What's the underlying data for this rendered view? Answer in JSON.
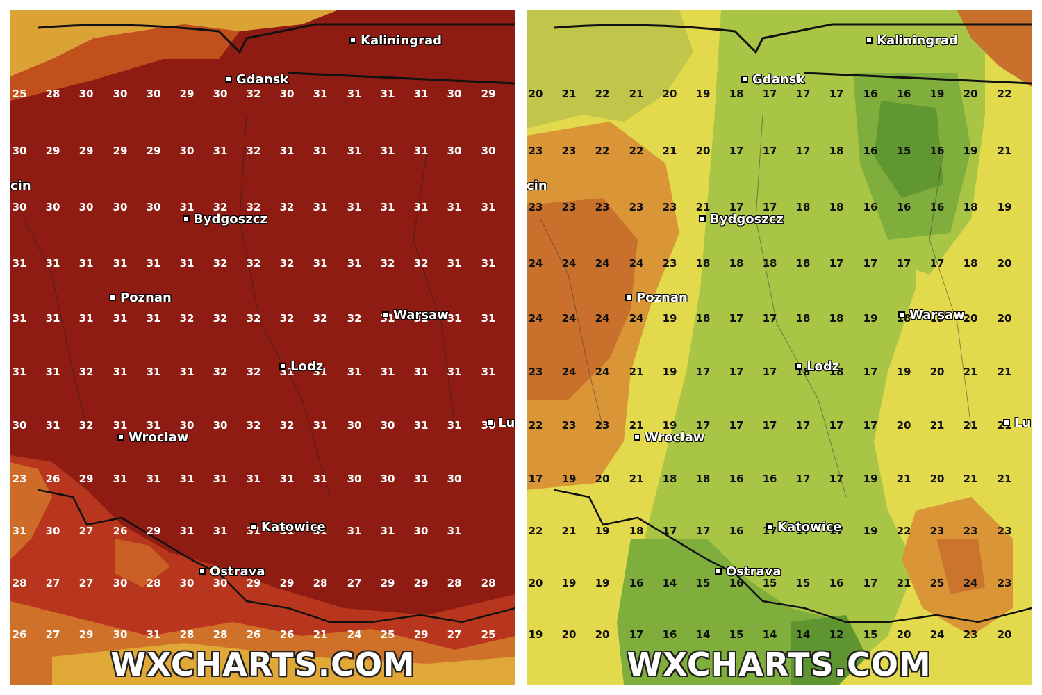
{
  "site": {
    "watermark": "WXCHARTS.COM"
  },
  "colors": {
    "left_base": "#8e1c12",
    "left_mid": "#b8361d",
    "left_orange": "#d0712a",
    "left_yellow": "#e3b23a",
    "right_base": "#a8c546",
    "right_green": "#7fae3c",
    "right_dark_green": "#5e9530",
    "right_yellow": "#e3d94c",
    "right_orange": "#d99536",
    "right_deep_orange": "#c8702c"
  },
  "rows": [
    {
      "left": [
        "25",
        "28",
        "30",
        "30",
        "30",
        "29",
        "30",
        "32",
        "30",
        "31",
        "31",
        "31",
        "31",
        "30",
        "29"
      ],
      "right": [
        "20",
        "21",
        "22",
        "21",
        "20",
        "19",
        "18",
        "17",
        "17",
        "17",
        "16",
        "16",
        "19",
        "20",
        "22"
      ]
    },
    {
      "left": [
        "30",
        "29",
        "29",
        "29",
        "29",
        "30",
        "31",
        "32",
        "31",
        "31",
        "31",
        "31",
        "31",
        "30",
        "30"
      ],
      "right": [
        "23",
        "23",
        "22",
        "22",
        "21",
        "20",
        "17",
        "17",
        "17",
        "18",
        "16",
        "15",
        "16",
        "19",
        "21"
      ]
    },
    {
      "left": [
        "30",
        "30",
        "30",
        "30",
        "30",
        "31",
        "32",
        "32",
        "32",
        "31",
        "31",
        "31",
        "31",
        "31",
        "31"
      ],
      "right": [
        "23",
        "23",
        "23",
        "23",
        "23",
        "21",
        "17",
        "17",
        "18",
        "18",
        "16",
        "16",
        "16",
        "18",
        "19"
      ]
    },
    {
      "left": [
        "31",
        "31",
        "31",
        "31",
        "31",
        "31",
        "32",
        "32",
        "32",
        "31",
        "31",
        "32",
        "32",
        "31",
        "31"
      ],
      "right": [
        "24",
        "24",
        "24",
        "24",
        "23",
        "18",
        "18",
        "18",
        "18",
        "17",
        "17",
        "17",
        "17",
        "18",
        "20"
      ]
    },
    {
      "left": [
        "31",
        "31",
        "31",
        "31",
        "31",
        "32",
        "32",
        "32",
        "32",
        "32",
        "32",
        "31",
        "31",
        "31",
        "31"
      ],
      "right": [
        "24",
        "24",
        "24",
        "24",
        "19",
        "18",
        "17",
        "17",
        "18",
        "18",
        "19",
        "18",
        "19",
        "20",
        "20"
      ]
    },
    {
      "left": [
        "31",
        "31",
        "32",
        "31",
        "31",
        "31",
        "32",
        "32",
        "31",
        "31",
        "31",
        "31",
        "31",
        "31",
        "31"
      ],
      "right": [
        "23",
        "24",
        "24",
        "21",
        "19",
        "17",
        "17",
        "17",
        "18",
        "18",
        "17",
        "19",
        "20",
        "21",
        "21"
      ]
    },
    {
      "left": [
        "30",
        "31",
        "32",
        "31",
        "31",
        "30",
        "30",
        "32",
        "32",
        "31",
        "30",
        "30",
        "31",
        "31",
        "30"
      ],
      "right": [
        "22",
        "23",
        "23",
        "21",
        "19",
        "17",
        "17",
        "17",
        "17",
        "17",
        "17",
        "20",
        "21",
        "21",
        "21"
      ]
    },
    {
      "left": [
        "23",
        "26",
        "29",
        "31",
        "31",
        "31",
        "31",
        "31",
        "31",
        "31",
        "30",
        "30",
        "31",
        "30",
        ""
      ],
      "right": [
        "17",
        "19",
        "20",
        "21",
        "18",
        "18",
        "16",
        "16",
        "17",
        "17",
        "19",
        "21",
        "20",
        "21",
        "21"
      ]
    },
    {
      "left": [
        "31",
        "30",
        "27",
        "26",
        "29",
        "31",
        "31",
        "31",
        "31",
        "31",
        "31",
        "31",
        "30",
        "31",
        ""
      ],
      "right": [
        "22",
        "21",
        "19",
        "18",
        "17",
        "17",
        "16",
        "17",
        "17",
        "17",
        "19",
        "22",
        "23",
        "23",
        "23"
      ]
    },
    {
      "left": [
        "28",
        "27",
        "27",
        "30",
        "28",
        "30",
        "30",
        "29",
        "29",
        "28",
        "27",
        "29",
        "29",
        "28",
        "28"
      ],
      "right": [
        "20",
        "19",
        "19",
        "16",
        "14",
        "15",
        "16",
        "15",
        "15",
        "16",
        "17",
        "21",
        "25",
        "24",
        "23"
      ]
    },
    {
      "left": [
        "26",
        "27",
        "29",
        "30",
        "31",
        "28",
        "28",
        "26",
        "26",
        "21",
        "24",
        "25",
        "29",
        "27",
        "25"
      ],
      "right": [
        "19",
        "20",
        "20",
        "17",
        "16",
        "14",
        "15",
        "14",
        "14",
        "12",
        "15",
        "20",
        "24",
        "23",
        "20"
      ]
    }
  ],
  "cities": {
    "kaliningrad": "Kaliningrad",
    "gdansk": "Gdansk",
    "bydgoszcz": "Bydgoszcz",
    "poznan": "Poznan",
    "warsaw": "Warsaw",
    "lodz": "Lodz",
    "wroclaw": "Wroclaw",
    "katowice": "Katowice",
    "ostrava": "Ostrava",
    "szczecin_partial": "cin",
    "lublin_partial": "Lu"
  }
}
